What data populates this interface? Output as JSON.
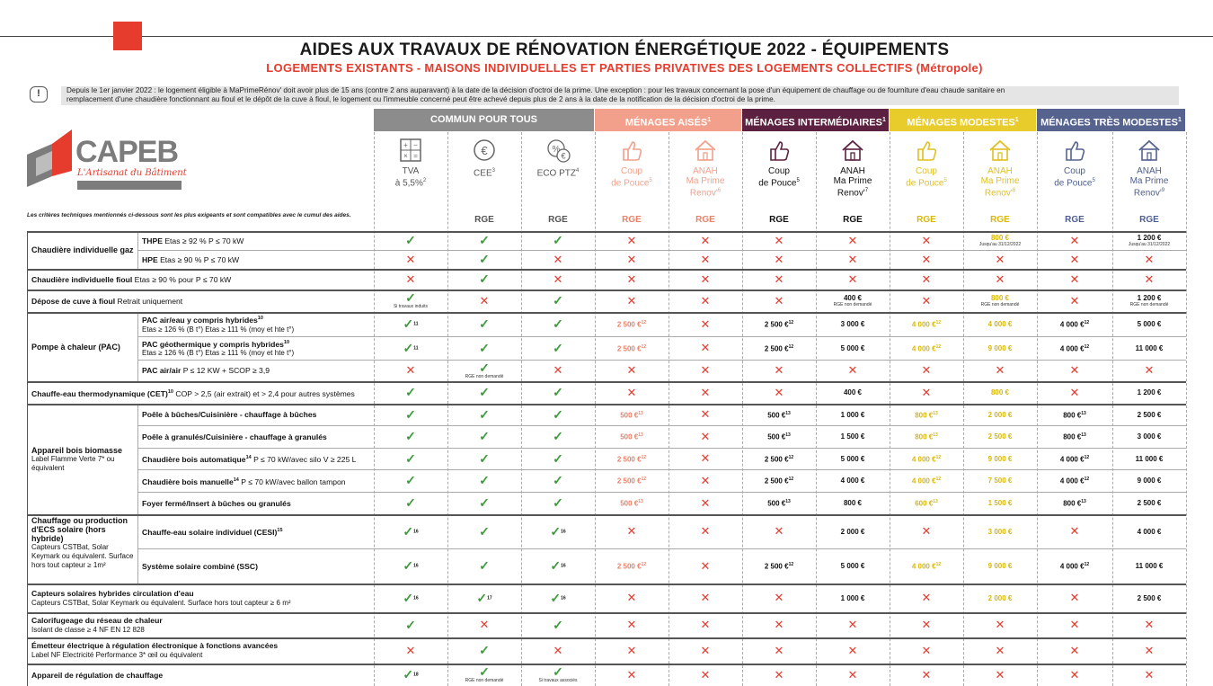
{
  "title": "AIDES AUX TRAVAUX DE RÉNOVATION ÉNERGÉTIQUE 2022 - ÉQUIPEMENTS",
  "subtitle": "LOGEMENTS EXISTANTS - MAISONS INDIVIDUELLES ET PARTIES PRIVATIVES DES LOGEMENTS COLLECTIFS (Métropole)",
  "info_line1": "Depuis le 1er janvier 2022 : le logement éligible à MaPrimeRénov' doit avoir plus de 15 ans (contre 2 ans auparavant) à la date de la décision d'octroi de la prime. Une exception : pour les travaux concernant la pose d'un équipement de chauffage ou de fourniture d'eau chaude sanitaire en",
  "info_line2": "remplacement d'une chaudière fonctionnant au fioul et le dépôt de la cuve à fioul, le logement ou l'immeuble concerné peut être achevé depuis plus de 2 ans à la date de la notification de la décision d'octroi de la prime.",
  "logo_text": "CAPEB",
  "logo_sub": "L'Artisanat du Bâtiment",
  "criteria_note": "Les critères techniques mentionnés ci-dessous sont les plus exigeants et sont compatibles avec le cumul des aides.",
  "colors": {
    "grey": "#8c8c8c",
    "salmon": "#f2a08b",
    "purple": "#5c2140",
    "yellow": "#e8cc2c",
    "blue": "#56638f",
    "red": "#e63c2e",
    "green": "#3d9a3d"
  },
  "groups": [
    {
      "label": "COMMUN POUR TOUS",
      "sup": ""
    },
    {
      "label": "MÉNAGES AISÉS",
      "sup": "1"
    },
    {
      "label": "MÉNAGES INTERMÉDIAIRES",
      "sup": "1"
    },
    {
      "label": "MÉNAGES MODESTES",
      "sup": "1"
    },
    {
      "label": "MÉNAGES TRÈS MODESTES",
      "sup": "1"
    }
  ],
  "columns": [
    {
      "icon": "calculator-icon",
      "l1": "TVA",
      "l2": "à 5,5%",
      "sup": "2",
      "rge": ""
    },
    {
      "icon": "euro-icon",
      "l1": "CEE",
      "l2": "",
      "sup": "3",
      "rge": "RGE"
    },
    {
      "icon": "percent-euro-icon",
      "l1": "ECO PTZ",
      "l2": "",
      "sup": "4",
      "rge": "RGE"
    },
    {
      "icon": "thumbs-up-icon",
      "l1": "Coup",
      "l2": "de Pouce",
      "sup": "5",
      "rge": "RGE"
    },
    {
      "icon": "house-icon",
      "l1": "ANAH",
      "l2": "Ma Prime",
      "l3": "Renov'",
      "sup": "6",
      "rge": "RGE"
    },
    {
      "icon": "thumbs-up-icon",
      "l1": "Coup",
      "l2": "de Pouce",
      "sup": "5",
      "rge": "RGE"
    },
    {
      "icon": "house-icon",
      "l1": "ANAH",
      "l2": "Ma Prime",
      "l3": "Renov'",
      "sup": "7",
      "rge": "RGE"
    },
    {
      "icon": "thumbs-up-icon",
      "l1": "Coup",
      "l2": "de Pouce",
      "sup": "5",
      "rge": "RGE"
    },
    {
      "icon": "house-icon",
      "l1": "ANAH",
      "l2": "Ma Prime",
      "l3": "Renov'",
      "sup": "8",
      "rge": "RGE"
    },
    {
      "icon": "thumbs-up-icon",
      "l1": "Coup",
      "l2": "de Pouce",
      "sup": "5",
      "rge": "RGE"
    },
    {
      "icon": "house-icon",
      "l1": "ANAH",
      "l2": "Ma Prime",
      "l3": "Renov'",
      "sup": "9",
      "rge": "RGE"
    }
  ],
  "groups_left": [
    {
      "label": "Chaudière individuelle gaz"
    },
    {
      "label": "Pompe à chaleur (PAC)"
    },
    {
      "label": "Appareil bois biomasse",
      "sub": "Label Flamme Verte 7* ou équivalent"
    },
    {
      "label": "Chauffage ou production d'ECS solaire (hors hybride)",
      "sub": "Capteurs CSTBat, Solar Keymark ou équivalent. Surface hors tout capteur ≥ 1m²"
    }
  ],
  "rows": [
    {
      "label": "THPE",
      "detail": "Etas ≥ 92 % P ≤ 70 kW",
      "cells": [
        "v",
        "v",
        "v",
        "x",
        "x",
        "x",
        "x",
        "x",
        {
          "t": "800 €",
          "n": "Jusqu'au 31/12/2022"
        },
        "x",
        {
          "t": "1 200 €",
          "n": "Jusqu'au 31/12/2022"
        }
      ]
    },
    {
      "label": "HPE",
      "detail": "Etas ≥ 90 % P ≤ 70 kW",
      "cells": [
        "x",
        "v",
        "x",
        "x",
        "x",
        "x",
        "x",
        "x",
        "x",
        "x",
        "x"
      ]
    },
    {
      "label": "Chaudière individuelle fioul",
      "detail": "Etas ≥ 90 % pour P ≤ 70 kW",
      "cells": [
        "x",
        "v",
        "x",
        "x",
        "x",
        "x",
        "x",
        "x",
        "x",
        "x",
        "x"
      ]
    },
    {
      "label": "Dépose de cuve à fioul",
      "detail": "Retrait uniquement",
      "cells": [
        {
          "v": 1,
          "n": "Si travaux induits"
        },
        "x",
        "v",
        "x",
        "x",
        "x",
        {
          "t": "400 €",
          "n": "RGE non demandé"
        },
        "x",
        {
          "t": "800 €",
          "n": "RGE non demandé"
        },
        "x",
        {
          "t": "1 200 €",
          "n": "RGE non demandé"
        }
      ]
    },
    {
      "label": "PAC air/eau y compris hybrides",
      "sup": "10",
      "detail": "Etas ≥ 126 % (B t°) Etas ≥ 111 % (moy et hte t°)",
      "cells": [
        {
          "v": 1,
          "s": "11"
        },
        "v",
        "v",
        {
          "t": "2 500 €",
          "s": "12"
        },
        "x",
        {
          "t": "2 500 €",
          "s": "12"
        },
        {
          "t": "3 000 €"
        },
        {
          "t": "4 000 €",
          "s": "12"
        },
        {
          "t": "4 000 €"
        },
        {
          "t": "4 000 €",
          "s": "12"
        },
        {
          "t": "5 000 €"
        }
      ]
    },
    {
      "label": "PAC géothermique y compris hybrides",
      "sup": "10",
      "detail": "Etas ≥ 126 % (B t°) Etas ≥ 111 % (moy et hte t°)",
      "cells": [
        {
          "v": 1,
          "s": "11"
        },
        "v",
        "v",
        {
          "t": "2 500 €",
          "s": "12"
        },
        "x",
        {
          "t": "2 500 €",
          "s": "12"
        },
        {
          "t": "5 000 €"
        },
        {
          "t": "4 000 €",
          "s": "12"
        },
        {
          "t": "9 000 €"
        },
        {
          "t": "4 000 €",
          "s": "12"
        },
        {
          "t": "11 000 €"
        }
      ]
    },
    {
      "label": "PAC air/air",
      "detail": "P ≤ 12 KW + SCOP ≥ 3,9",
      "cells": [
        "x",
        {
          "v": 1,
          "n": "RGE non demandé"
        },
        "x",
        "x",
        "x",
        "x",
        "x",
        "x",
        "x",
        "x",
        "x"
      ]
    },
    {
      "label": "Chauffe-eau thermodynamique (CET)",
      "sup": "10",
      "detail": "COP > 2,5 (air extrait) et > 2,4 pour autres systèmes",
      "cells": [
        "v",
        "v",
        "v",
        "x",
        "x",
        "x",
        {
          "t": "400 €"
        },
        "x",
        {
          "t": "800 €"
        },
        "x",
        {
          "t": "1 200 €"
        }
      ]
    },
    {
      "label": "Poêle à bûches/Cuisinière - chauffage à bûches",
      "cells": [
        "v",
        "v",
        "v",
        {
          "t": "500 €",
          "s": "13"
        },
        "x",
        {
          "t": "500 €",
          "s": "13"
        },
        {
          "t": "1 000 €"
        },
        {
          "t": "800 €",
          "s": "13"
        },
        {
          "t": "2 000 €"
        },
        {
          "t": "800 €",
          "s": "13"
        },
        {
          "t": "2 500 €"
        }
      ]
    },
    {
      "label": "Poêle à granulés/Cuisinière - chauffage à granulés",
      "cells": [
        "v",
        "v",
        "v",
        {
          "t": "500 €",
          "s": "13"
        },
        "x",
        {
          "t": "500 €",
          "s": "13"
        },
        {
          "t": "1 500 €"
        },
        {
          "t": "800 €",
          "s": "13"
        },
        {
          "t": "2 500 €"
        },
        {
          "t": "800 €",
          "s": "13"
        },
        {
          "t": "3 000 €"
        }
      ]
    },
    {
      "label": "Chaudière bois automatique",
      "sup": "14",
      "detail": "P ≤ 70 kW/avec silo V ≥ 225 L",
      "cells": [
        "v",
        "v",
        "v",
        {
          "t": "2 500 €",
          "s": "12"
        },
        "x",
        {
          "t": "2 500 €",
          "s": "12"
        },
        {
          "t": "5 000 €"
        },
        {
          "t": "4 000 €",
          "s": "12"
        },
        {
          "t": "9 000 €"
        },
        {
          "t": "4 000 €",
          "s": "12"
        },
        {
          "t": "11 000 €"
        }
      ]
    },
    {
      "label": "Chaudière bois manuelle",
      "sup": "14",
      "detail": "P ≤ 70 kW/avec ballon tampon",
      "cells": [
        "v",
        "v",
        "v",
        {
          "t": "2 500 €",
          "s": "12"
        },
        "x",
        {
          "t": "2 500 €",
          "s": "12"
        },
        {
          "t": "4 000 €"
        },
        {
          "t": "4 000 €",
          "s": "12"
        },
        {
          "t": "7 500 €"
        },
        {
          "t": "4 000 €",
          "s": "12"
        },
        {
          "t": "9 000 €"
        }
      ]
    },
    {
      "label": "Foyer fermé/Insert à bûches ou granulés",
      "cells": [
        "v",
        "v",
        "v",
        {
          "t": "500 €",
          "s": "13"
        },
        "x",
        {
          "t": "500 €",
          "s": "13"
        },
        {
          "t": "800 €"
        },
        {
          "t": "600 €",
          "s": "13"
        },
        {
          "t": "1 500 €"
        },
        {
          "t": "800 €",
          "s": "13"
        },
        {
          "t": "2 500 €"
        }
      ]
    },
    {
      "label": "Chauffe-eau solaire individuel (CESI)",
      "sup": "15",
      "cells": [
        {
          "v": 1,
          "s": "16"
        },
        "v",
        {
          "v": 1,
          "s": "16"
        },
        "x",
        "x",
        "x",
        {
          "t": "2 000 €"
        },
        "x",
        {
          "t": "3 000 €"
        },
        "x",
        {
          "t": "4 000 €"
        }
      ]
    },
    {
      "label": "Système solaire combiné (SSC)",
      "cells": [
        {
          "v": 1,
          "s": "16"
        },
        "v",
        {
          "v": 1,
          "s": "16"
        },
        {
          "t": "2 500 €",
          "s": "12"
        },
        "x",
        {
          "t": "2 500 €",
          "s": "12"
        },
        {
          "t": "5 000 €"
        },
        {
          "t": "4 000 €",
          "s": "12"
        },
        {
          "t": "9 000 €"
        },
        {
          "t": "4 000 €",
          "s": "12"
        },
        {
          "t": "11 000 €"
        }
      ]
    },
    {
      "label": "Capteurs solaires hybrides circulation d'eau",
      "detail": "Capteurs CSTBat, Solar Keymark ou équivalent. Surface hors tout capteur ≥ 6 m²",
      "cells": [
        {
          "v": 1,
          "s": "16"
        },
        {
          "v": 1,
          "s": "17"
        },
        {
          "v": 1,
          "s": "16"
        },
        "x",
        "x",
        "x",
        {
          "t": "1 000 €"
        },
        "x",
        {
          "t": "2 000 €"
        },
        "x",
        {
          "t": "2 500 €"
        }
      ]
    },
    {
      "label": "Calorifugeage du réseau de chaleur",
      "detail": "Isolant de classe ≥ 4 NF EN 12 828",
      "cells": [
        "v",
        "x",
        "v",
        "x",
        "x",
        "x",
        "x",
        "x",
        "x",
        "x",
        "x"
      ]
    },
    {
      "label": "Émetteur électrique à régulation électronique à fonctions avancées",
      "detail": "Label NF Electricité Performance 3* œil ou équivalent",
      "cells": [
        "x",
        "v",
        "x",
        "x",
        "x",
        "x",
        "x",
        "x",
        "x",
        "x",
        "x"
      ]
    },
    {
      "label": "Appareil de régulation de chauffage",
      "cells": [
        {
          "v": 1,
          "s": "18"
        },
        {
          "v": 1,
          "n": "RGE non demandé"
        },
        {
          "v": 1,
          "n": "Si travaux associés"
        },
        "x",
        "x",
        "x",
        "x",
        "x",
        "x",
        "x",
        "x"
      ]
    }
  ]
}
